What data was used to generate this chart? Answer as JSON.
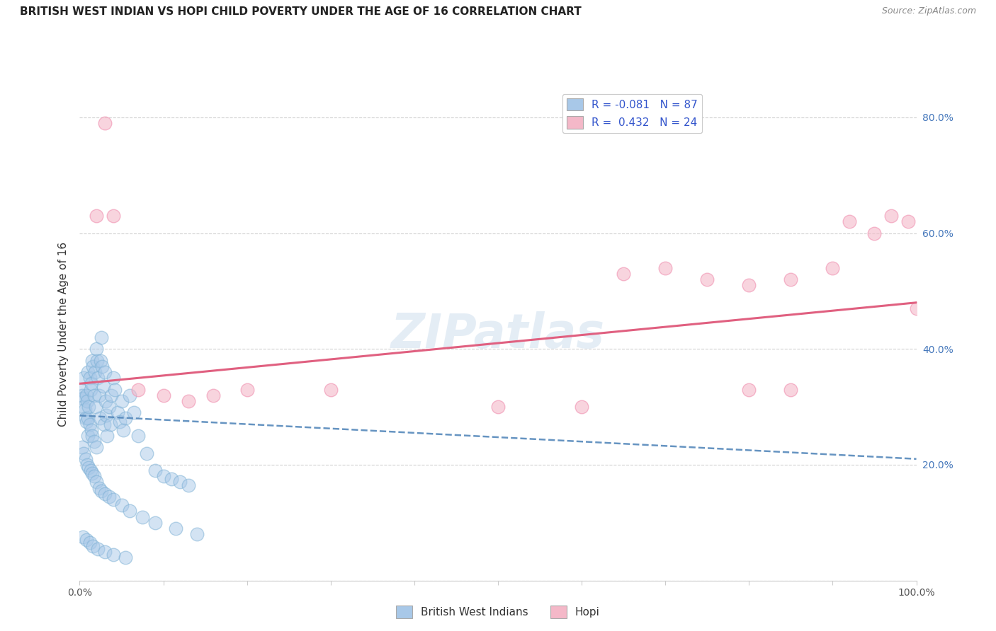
{
  "title": "BRITISH WEST INDIAN VS HOPI CHILD POVERTY UNDER THE AGE OF 16 CORRELATION CHART",
  "source": "Source: ZipAtlas.com",
  "ylabel": "Child Poverty Under the Age of 16",
  "xlim": [
    0,
    100
  ],
  "ylim": [
    0,
    85
  ],
  "xticks": [
    0,
    10,
    20,
    30,
    40,
    50,
    60,
    70,
    80,
    90,
    100
  ],
  "xticklabels": [
    "0.0%",
    "",
    "",
    "",
    "",
    "",
    "",
    "",
    "",
    "",
    "100.0%"
  ],
  "yticks": [
    0,
    20,
    40,
    60,
    80
  ],
  "right_yticks": [
    20,
    40,
    60,
    80
  ],
  "right_yticklabels": [
    "20.0%",
    "40.0%",
    "60.0%",
    "80.0%"
  ],
  "blue_color": "#a8c8e8",
  "pink_color": "#f4b8c8",
  "blue_edge_color": "#7aafd4",
  "pink_edge_color": "#f090b0",
  "blue_line_color": "#5588bb",
  "pink_line_color": "#e06080",
  "watermark": "ZIPatlas",
  "background_color": "#ffffff",
  "grid_color": "#cccccc",
  "blue_scatter_x": [
    0.2,
    0.3,
    0.4,
    0.5,
    0.5,
    0.6,
    0.7,
    0.8,
    0.8,
    0.9,
    1.0,
    1.0,
    1.0,
    1.1,
    1.2,
    1.2,
    1.3,
    1.4,
    1.4,
    1.5,
    1.5,
    1.6,
    1.7,
    1.7,
    1.8,
    1.9,
    2.0,
    2.0,
    2.1,
    2.2,
    2.3,
    2.4,
    2.5,
    2.6,
    2.7,
    2.8,
    2.9,
    3.0,
    3.1,
    3.2,
    3.3,
    3.5,
    3.7,
    3.8,
    4.0,
    4.2,
    4.5,
    4.8,
    5.0,
    5.2,
    5.5,
    6.0,
    6.5,
    7.0,
    8.0,
    9.0,
    10.0,
    11.0,
    12.0,
    13.0,
    0.3,
    0.5,
    0.7,
    0.9,
    1.1,
    1.3,
    1.5,
    1.7,
    2.0,
    2.3,
    2.6,
    3.0,
    3.5,
    4.0,
    5.0,
    6.0,
    7.5,
    9.0,
    11.5,
    14.0,
    0.4,
    0.8,
    1.2,
    1.6,
    2.2,
    3.0,
    4.0,
    5.5
  ],
  "blue_scatter_y": [
    33.0,
    32.0,
    31.5,
    30.0,
    35.0,
    29.5,
    28.0,
    32.0,
    27.5,
    31.0,
    36.0,
    28.0,
    25.0,
    30.0,
    35.0,
    27.0,
    33.0,
    34.0,
    26.0,
    38.0,
    25.0,
    37.0,
    32.0,
    24.0,
    36.0,
    30.0,
    40.0,
    23.0,
    38.0,
    35.0,
    32.0,
    28.0,
    38.0,
    42.0,
    37.0,
    33.5,
    27.0,
    36.0,
    31.0,
    28.5,
    25.0,
    30.0,
    27.0,
    32.0,
    35.0,
    33.0,
    29.0,
    27.5,
    31.0,
    26.0,
    28.0,
    32.0,
    29.0,
    25.0,
    22.0,
    19.0,
    18.0,
    17.5,
    17.0,
    16.5,
    23.0,
    22.0,
    21.0,
    20.0,
    19.5,
    19.0,
    18.5,
    18.0,
    17.0,
    16.0,
    15.5,
    15.0,
    14.5,
    14.0,
    13.0,
    12.0,
    11.0,
    10.0,
    9.0,
    8.0,
    7.5,
    7.0,
    6.5,
    6.0,
    5.5,
    5.0,
    4.5,
    4.0
  ],
  "pink_scatter_x": [
    3.0,
    4.0,
    7.0,
    10.0,
    13.0,
    16.0,
    20.0,
    50.0,
    65.0,
    70.0,
    75.0,
    80.0,
    85.0,
    90.0,
    92.0,
    95.0,
    97.0,
    99.0,
    2.0,
    30.0,
    60.0,
    80.0,
    85.0,
    100.0
  ],
  "pink_scatter_y": [
    79.0,
    63.0,
    33.0,
    32.0,
    31.0,
    32.0,
    33.0,
    30.0,
    53.0,
    54.0,
    52.0,
    51.0,
    52.0,
    54.0,
    62.0,
    60.0,
    63.0,
    62.0,
    63.0,
    33.0,
    30.0,
    33.0,
    33.0,
    47.0
  ],
  "blue_trend_x": [
    0,
    100
  ],
  "blue_trend_y": [
    28.5,
    21.0
  ],
  "pink_trend_x": [
    0,
    100
  ],
  "pink_trend_y": [
    34.0,
    48.0
  ]
}
